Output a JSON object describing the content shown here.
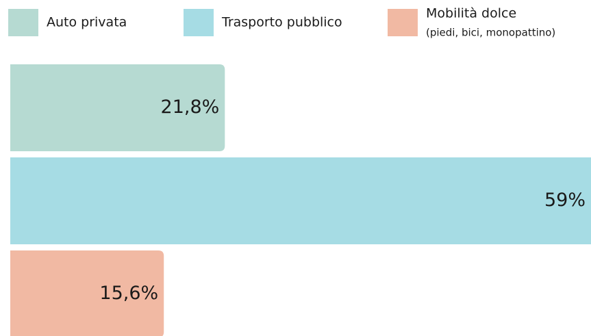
{
  "chart_data": {
    "type": "bar",
    "orientation": "horizontal",
    "series": [
      {
        "name": "Auto privata",
        "color": "#b6dad2",
        "values": [
          21.8
        ],
        "value_labels": [
          "21,8%"
        ]
      },
      {
        "name": "Trasporto pubblico",
        "color": "#a6dce4",
        "values": [
          59
        ],
        "value_labels": [
          "59%"
        ]
      },
      {
        "name": "Mobilità dolce",
        "note": "(piedi, bici, monopattino)",
        "color": "#f1b9a3",
        "values": [
          15.6
        ],
        "value_labels": [
          "15,6%"
        ]
      }
    ]
  }
}
